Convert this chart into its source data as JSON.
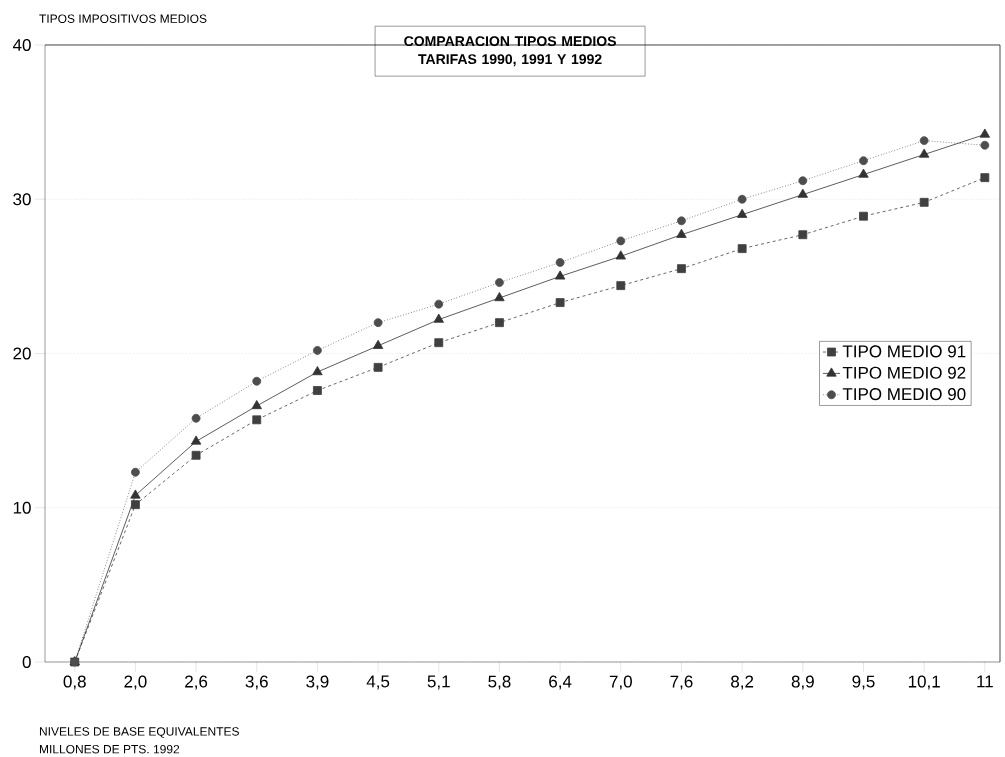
{
  "chart_data": {
    "type": "line",
    "title": "COMPARACION TIPOS MEDIOS\nTARIFAS 1990, 1991 Y 1992",
    "xlabel": "NIVELES DE BASE EQUIVALENTES",
    "ylabel": "TIPOS IMPOSITIVOS MEDIOS",
    "annotations": [
      "MILLONES DE PTS. 1992"
    ],
    "categories": [
      "0,8",
      "2,0",
      "2,6",
      "3,6",
      "3,9",
      "4,5",
      "5,1",
      "5,8",
      "6,4",
      "7,0",
      "7,6",
      "8,2",
      "8,9",
      "9,5",
      "10,1",
      "11"
    ],
    "series": [
      {
        "name": "TIPO MEDIO 91",
        "color": "#404040",
        "marker": "square",
        "line_style": "dashed",
        "values": [
          0,
          10.2,
          13.4,
          15.7,
          17.6,
          19.1,
          20.7,
          22.0,
          23.3,
          24.4,
          25.5,
          26.8,
          27.7,
          28.9,
          29.8,
          31.4
        ]
      },
      {
        "name": "TIPO MEDIO 92",
        "color": "#333333",
        "marker": "triangle",
        "line_style": "solid",
        "values": [
          0,
          10.8,
          14.3,
          16.6,
          18.8,
          20.5,
          22.2,
          23.6,
          25.0,
          26.3,
          27.7,
          29.0,
          30.3,
          31.6,
          32.9,
          34.2
        ]
      },
      {
        "name": "TIPO MEDIO 90",
        "color": "#4d4d4d",
        "marker": "circle",
        "line_style": "dotted",
        "values": [
          0,
          12.3,
          15.8,
          18.2,
          20.2,
          22.0,
          23.2,
          24.6,
          25.9,
          27.3,
          28.6,
          30.0,
          31.2,
          32.5,
          33.8,
          33.5
        ]
      }
    ],
    "ylim": [
      0,
      40
    ],
    "yticks": [
      0,
      10,
      20,
      30,
      40
    ],
    "grid": "y",
    "legend": "right"
  }
}
